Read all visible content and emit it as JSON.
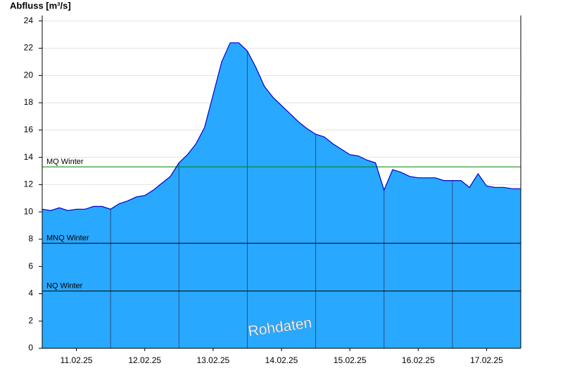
{
  "chart_data": {
    "type": "area",
    "y_label": "Abfluss [m³/s]",
    "watermark": "Rohdaten",
    "xlim": [
      0,
      7
    ],
    "ylim": [
      0,
      24.4
    ],
    "yticks": [
      0,
      2,
      4,
      6,
      8,
      10,
      12,
      14,
      16,
      18,
      20,
      22,
      24
    ],
    "xticks": [
      {
        "value": 0.5,
        "label": "11.02.25"
      },
      {
        "value": 1.5,
        "label": "12.02.25"
      },
      {
        "value": 2.5,
        "label": "13.02.25"
      },
      {
        "value": 3.5,
        "label": "14.02.25"
      },
      {
        "value": 4.5,
        "label": "15.02.25"
      },
      {
        "value": 5.5,
        "label": "16.02.25"
      },
      {
        "value": 6.5,
        "label": "17.02.25"
      }
    ],
    "day_lines": [
      1,
      2,
      3,
      4,
      5,
      6
    ],
    "grid": true,
    "fill_color": "#29a8ff",
    "line_color": "#0000cc",
    "x": [
      0,
      0.125,
      0.25,
      0.375,
      0.5,
      0.625,
      0.75,
      0.875,
      1,
      1.125,
      1.25,
      1.375,
      1.5,
      1.625,
      1.75,
      1.875,
      2,
      2.125,
      2.25,
      2.375,
      2.5,
      2.625,
      2.75,
      2.875,
      3,
      3.125,
      3.25,
      3.375,
      3.5,
      3.625,
      3.75,
      3.875,
      4,
      4.125,
      4.25,
      4.375,
      4.5,
      4.625,
      4.75,
      4.875,
      5,
      5.125,
      5.25,
      5.375,
      5.5,
      5.625,
      5.75,
      5.875,
      6,
      6.125,
      6.25,
      6.375,
      6.5,
      6.625,
      6.75,
      6.875,
      7
    ],
    "values": [
      10.2,
      10.1,
      10.3,
      10.1,
      10.2,
      10.2,
      10.4,
      10.4,
      10.2,
      10.6,
      10.8,
      11.1,
      11.2,
      11.6,
      12.1,
      12.6,
      13.6,
      14.2,
      15,
      16.2,
      18.6,
      21,
      22.4,
      22.4,
      21.8,
      20.6,
      19.2,
      18.4,
      17.8,
      17.2,
      16.6,
      16.1,
      15.7,
      15.5,
      15,
      14.6,
      14.2,
      14.1,
      13.8,
      13.6,
      11.6,
      13.1,
      12.9,
      12.6,
      12.5,
      12.5,
      12.5,
      12.3,
      12.3,
      12.3,
      11.8,
      12.8,
      11.9,
      11.8,
      11.8,
      11.7,
      11.7
    ],
    "reference_lines": [
      {
        "label": "MQ Winter",
        "value": 13.3,
        "color": "#008000"
      },
      {
        "label": "MNQ Winter",
        "value": 7.7,
        "color": "#000000"
      },
      {
        "label": "NQ Winter",
        "value": 4.2,
        "color": "#000000"
      }
    ]
  }
}
